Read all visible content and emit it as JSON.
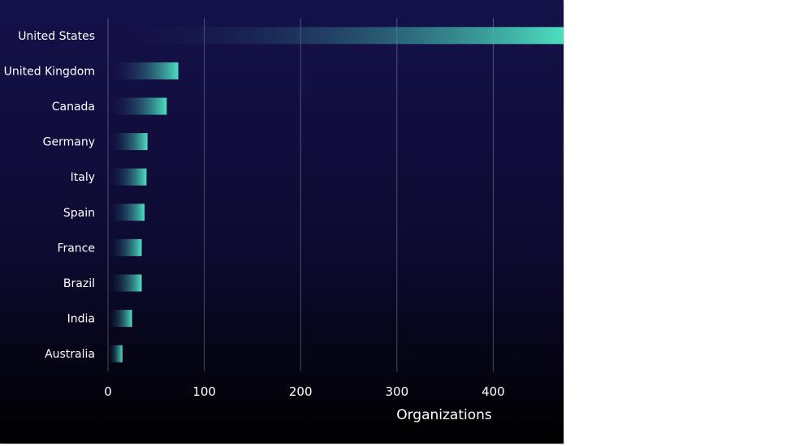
{
  "chart_data": {
    "type": "bar",
    "orientation": "horizontal",
    "categories": [
      "United States",
      "United Kingdom",
      "Canada",
      "Germany",
      "Italy",
      "Spain",
      "France",
      "Brazil",
      "India",
      "Australia"
    ],
    "values": [
      473,
      73,
      61,
      41,
      40,
      38,
      35,
      35,
      25,
      15
    ],
    "xlabel": "Organizations",
    "ylabel": "",
    "title": "",
    "xlim": [
      0,
      473
    ],
    "xticks": [
      0,
      100,
      200,
      300,
      400
    ],
    "grid": "vertical",
    "colors": {
      "bar": "#4cdfc0",
      "bar_fade": "#15114a",
      "background_top": "#15114a",
      "background_bottom": "#000000",
      "text": "#ffffff"
    }
  }
}
